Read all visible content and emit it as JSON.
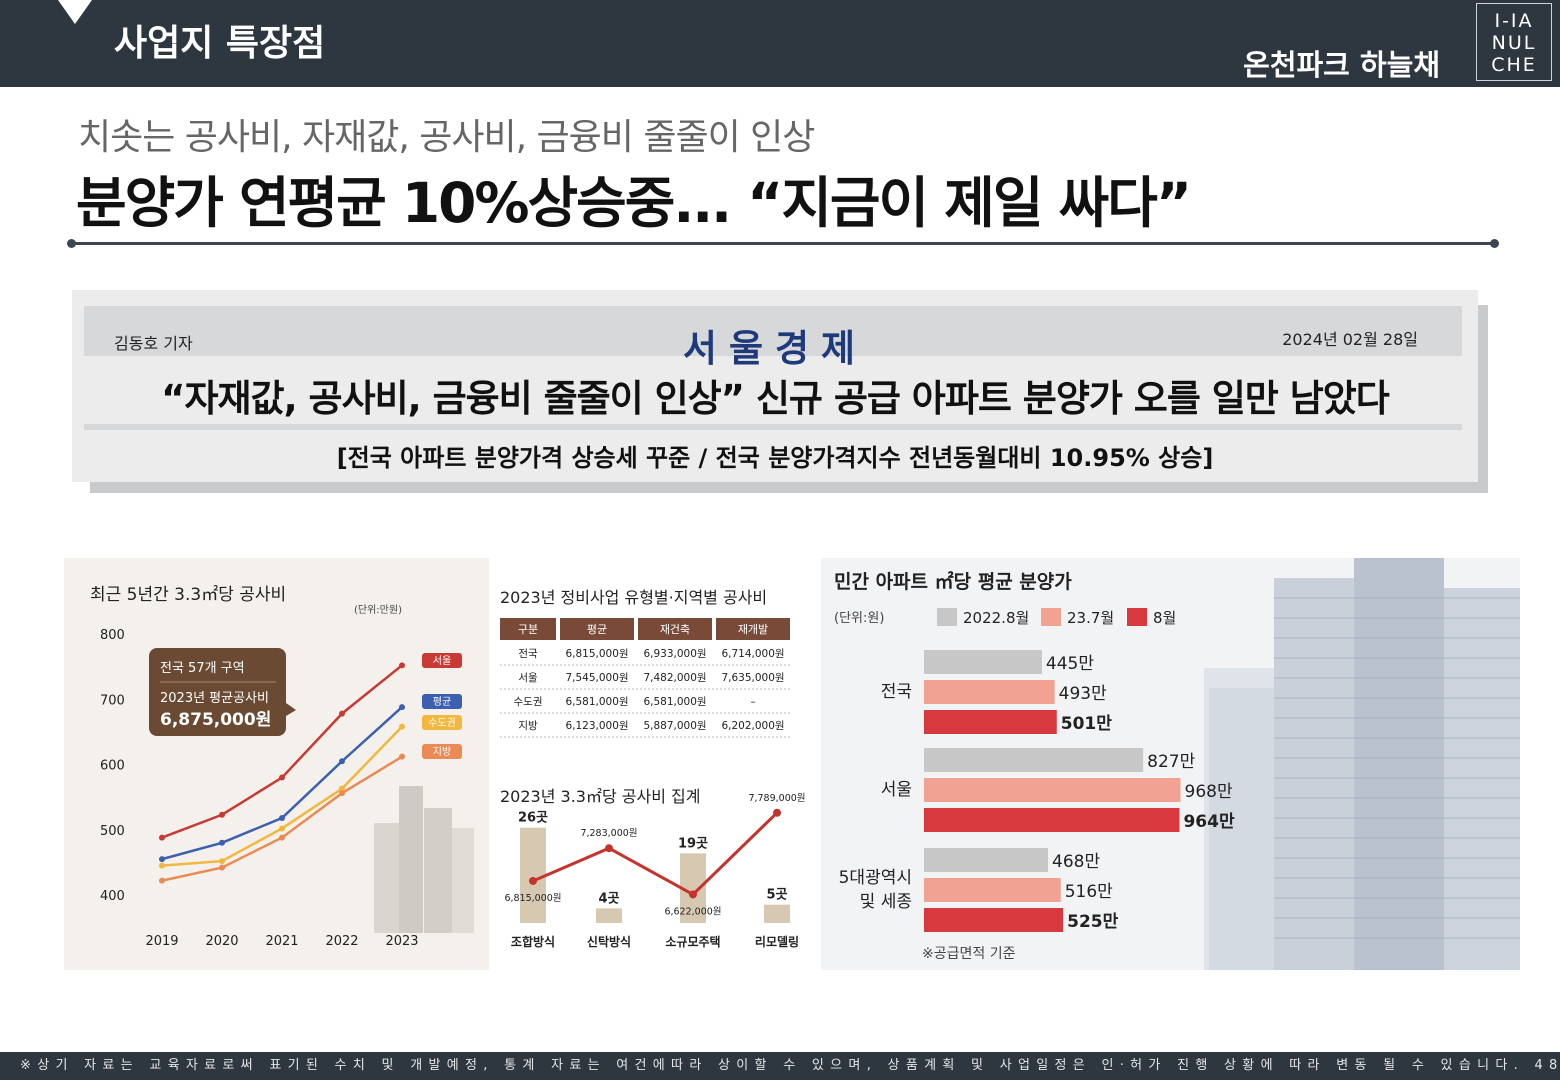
{
  "header": {
    "section_title": "사업지 특장점",
    "project_name": "온천파크 하늘채",
    "logo_lines": [
      "I-IA",
      "NUL",
      "CHE"
    ]
  },
  "headline": {
    "subtitle": "치솟는 공사비, 자재값, 공사비, 금융비 줄줄이 인상",
    "title": "분양가 연평균 10%상승중... “지금이 제일 싸다”"
  },
  "news": {
    "reporter": "김동호 기자",
    "paper": "서울경제",
    "date": "2024년 02월 28일",
    "headline": "“자재값, 공사비, 금융비 줄줄이 인상” 신규 공급 아파트 분양가 오를 일만 남았다",
    "subheadline": "[전국 아파트 분양가격 상승세 꾸준 / 전국 분양가격지수 전년동월대비 10.95% 상승]"
  },
  "chart_data": [
    {
      "type": "line",
      "title": "최근 5년간 3.3㎡당 공사비",
      "unit": "(단위:만원)",
      "x": [
        "2019",
        "2020",
        "2021",
        "2022",
        "2023"
      ],
      "ylim": [
        400,
        800
      ],
      "yticks": [
        800,
        700,
        600,
        500,
        400
      ],
      "series": [
        {
          "name": "서울",
          "color": "#c83a33",
          "values": [
            488,
            523,
            580,
            678,
            752
          ]
        },
        {
          "name": "평균",
          "color": "#3c5fb0",
          "values": [
            455,
            480,
            518,
            605,
            688
          ]
        },
        {
          "name": "수도권",
          "color": "#f2b73c",
          "values": [
            445,
            452,
            502,
            563,
            658
          ]
        },
        {
          "name": "지방",
          "color": "#ec8a55",
          "values": [
            422,
            442,
            488,
            556,
            612
          ]
        }
      ],
      "callout": {
        "line1": "전국 57개 구역",
        "line2": "2023년 평균공사비",
        "value": "6,875,000원"
      }
    },
    {
      "type": "table",
      "title": "2023년 정비사업 유형별·지역별 공사비",
      "columns": [
        "구분",
        "평균",
        "재건축",
        "재개발"
      ],
      "rows": [
        [
          "전국",
          "6,815,000원",
          "6,933,000원",
          "6,714,000원"
        ],
        [
          "서울",
          "7,545,000원",
          "7,482,000원",
          "7,635,000원"
        ],
        [
          "수도권",
          "6,581,000원",
          "6,581,000원",
          "–"
        ],
        [
          "지방",
          "6,123,000원",
          "5,887,000원",
          "6,202,000원"
        ]
      ]
    },
    {
      "type": "bar",
      "title": "2023년 3.3㎡당 공사비 집계",
      "categories": [
        "조합방식",
        "신탁방식",
        "소규모주택",
        "리모델링"
      ],
      "counts": [
        "26곳",
        "4곳",
        "19곳",
        "5곳"
      ],
      "count_values": [
        26,
        4,
        19,
        5
      ],
      "cost_labels": [
        "6,815,000원",
        "7,283,000원",
        "6,622,000원",
        "7,789,000원"
      ],
      "cost_values": [
        6815000,
        7283000,
        6622000,
        7789000
      ]
    },
    {
      "type": "bar",
      "title": "민간 아파트 ㎡당 평균 분양가",
      "unit": "(단위:원)",
      "legend": [
        {
          "label": "2022.8월",
          "color": "#c7c7c7"
        },
        {
          "label": "23.7월",
          "color": "#f2a292"
        },
        {
          "label": "8월",
          "color": "#d8393e"
        }
      ],
      "categories": [
        "전국",
        "서울",
        "5대광역시 및 세종"
      ],
      "series": [
        {
          "name": "2022.8월",
          "values": [
            445,
            827,
            468
          ],
          "labels": [
            "445만",
            "827만",
            "468만"
          ]
        },
        {
          "name": "23.7월",
          "values": [
            493,
            968,
            516
          ],
          "labels": [
            "493만",
            "968만",
            "516만"
          ]
        },
        {
          "name": "8월",
          "values": [
            501,
            964,
            525
          ],
          "labels": [
            "501만",
            "964만",
            "525만"
          ]
        }
      ],
      "note": "※공급면적 기준"
    }
  ],
  "footer": {
    "disclaimer": "※상기 자료는 교육자료로써 표기된 수치 및 개발예정, 통계 자료는 여건에따라 상이할 수 있으며, 상품계획 및 사업일정은 인·허가 진행 상황에 따라 변동 될 수 있습니다.",
    "page": "48"
  }
}
